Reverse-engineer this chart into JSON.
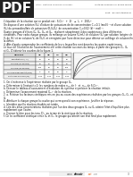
{
  "bg_color": "#ffffff",
  "pdf_watermark": "PDF",
  "pdf_bg_color": "#222222",
  "header_text_left": "Série : cinétique chimique Chimique -",
  "header_text_right": "Lycée Ibn Khaldoun Sidi Bouzid Tunisie\nEnsé. : Bac Mathématiques",
  "line1": "L'équation de la réaction qui se produit est : S2O8²⁻  +  2I⁻  →  I2  +  2SO4²⁻",
  "para1a": "On dispose d'une solution (S1) d'iodure de potassium de de concentration C1=0,1 (mol).l⁻¹ et d'une solution",
  "para1b": "(S2) du peroxodisulfate de potassium (K2S2O8)  de concentration C2=0,02 (dl⁻¹ mol)⁻¹.",
  "para2a": "Quatre groupes d'élèves G1, G2, G3, et G4,  réalisent séparément 4 des expériences dans différentes",
  "para2b": "conditions. Pour cada chaque groupe, ils mélange un volume V1(mL) de solution (S1) par solution (origine de fumige, en solution",
  "para2c": "V2 de (S2) et en solution V3 de (S3)), et enregistre par l'une détecteur pour détenu un voltilage de solution final",
  "para2d": "la difttre.",
  "intro1": "4. Afin d'après comprendre les coefficients de leurs lesquelles sont données les quatre expériences,",
  "intro2": "Le taux de l'évolution de l'avancement x(t) cette réaction au cours du temps, à partir des groupes G2, G3",
  "intro3": "et G4, D'obtenir les courbes de la figure 1.",
  "table_headers": [
    "Groupes",
    "G1",
    "G2",
    "G3",
    "G4"
  ],
  "table_rows": [
    [
      "Températures (°C)",
      "20",
      "20",
      "20",
      "20"
    ],
    [
      "Volume (V1 en mls)",
      "10",
      "10",
      "10",
      "10"
    ],
    [
      "Volume (V2 en mls)",
      "100",
      "80",
      "60",
      "100"
    ],
    [
      "Volume d'eau ajouté (mls)",
      "0",
      "20",
      "40",
      "0"
    ],
    [
      "Distances des ions (M)⁻¹",
      "xxxx",
      "xxxx",
      "xxxx",
      "xxxx"
    ]
  ],
  "q1": "1. On s'intéresse à l'expérience réalisée par le groupe G1.",
  "q1a": "a. Déterminer à l'instant t=0, les nombres de moles n1,0 de I⁻  et  n1,0 de S2O8²⁻.",
  "q1b": "b. Dresser le tableau d'avancement d'évolution du système et préciser la réaction initiale.",
  "q1c": "c. Déterminer l'avancement maximal Xmax  de la réaction.",
  "q2a": "2. a. Préciser les facteurs cinétiques mis en jeu au cours des expériences réalisées par les groupes G1, G2, et",
  "q2a2": "G3.",
  "q2b": "b. Attribuer à chaque groupe la courbe qui correspond à son expérience. Justifier la réponse.",
  "q2c": "c. Identifier quel la réaction étudiée est totale.",
  "q2d": "d. Lire des deux concentrations réalisées par l'un des deux groupes G2 ou G3 atteint l'état d'équilibre plus",
  "q2d2": "rapidement que l'autre.",
  "q2e": "e. Donner le titre pour les ions IO3⁻ au terme de la cinétique de la réaction.",
  "q2f": "f. On le coefficient cinétique entre G2 et G3, le groupe qui atteint son état final plus rapidement.",
  "footer_url": "www.devoir",
  "footer_ext": ".net",
  "footer_com": ".com",
  "page_number": "3"
}
